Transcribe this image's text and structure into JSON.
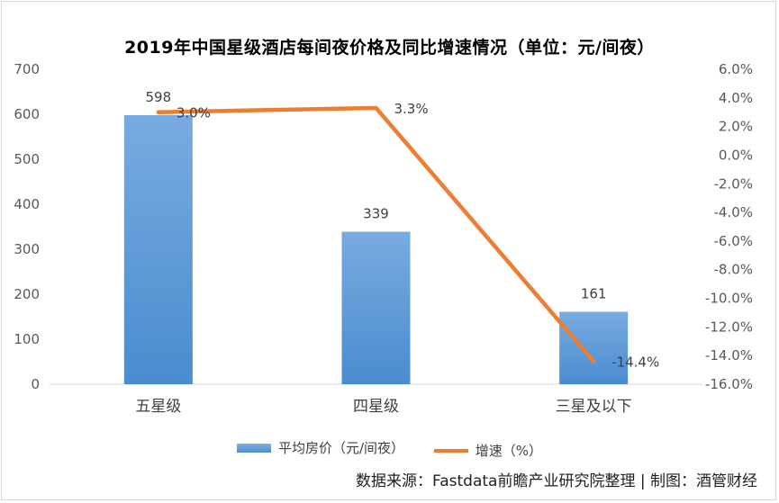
{
  "chart_data": {
    "type": "bar+line",
    "title": "2019年中国星级酒店每间夜价格及同比增速情况（单位：元/间夜）",
    "categories": [
      "五星级",
      "四星级",
      "三星及以下"
    ],
    "series": [
      {
        "name": "平均房价（元/间夜）",
        "type": "bar",
        "axis": "left",
        "values": [
          598,
          339,
          161
        ],
        "labels": [
          "598",
          "339",
          "161"
        ],
        "color": "#5b9bd5"
      },
      {
        "name": "增速（%）",
        "type": "line",
        "axis": "right",
        "values": [
          3.0,
          3.3,
          -14.4
        ],
        "labels": [
          "3.0%",
          "3.3%",
          "-14.4%"
        ],
        "color": "#ed7d31"
      }
    ],
    "y_left": {
      "min": 0,
      "max": 700,
      "step": 100,
      "ticks": [
        "0",
        "100",
        "200",
        "300",
        "400",
        "500",
        "600",
        "700"
      ]
    },
    "y_right": {
      "min": -16,
      "max": 6,
      "step": 2,
      "ticks": [
        "-16.0%",
        "-14.0%",
        "-12.0%",
        "-10.0%",
        "-8.0%",
        "-6.0%",
        "-4.0%",
        "-2.0%",
        "0.0%",
        "2.0%",
        "4.0%",
        "6.0%"
      ]
    },
    "grid": false,
    "legend_position": "bottom"
  },
  "legend": {
    "bar_label": "平均房价（元/间夜）",
    "line_label": "增速（%）"
  },
  "source_text": "数据来源：Fastdata前瞻产业研究院整理 | 制图：酒管财经"
}
